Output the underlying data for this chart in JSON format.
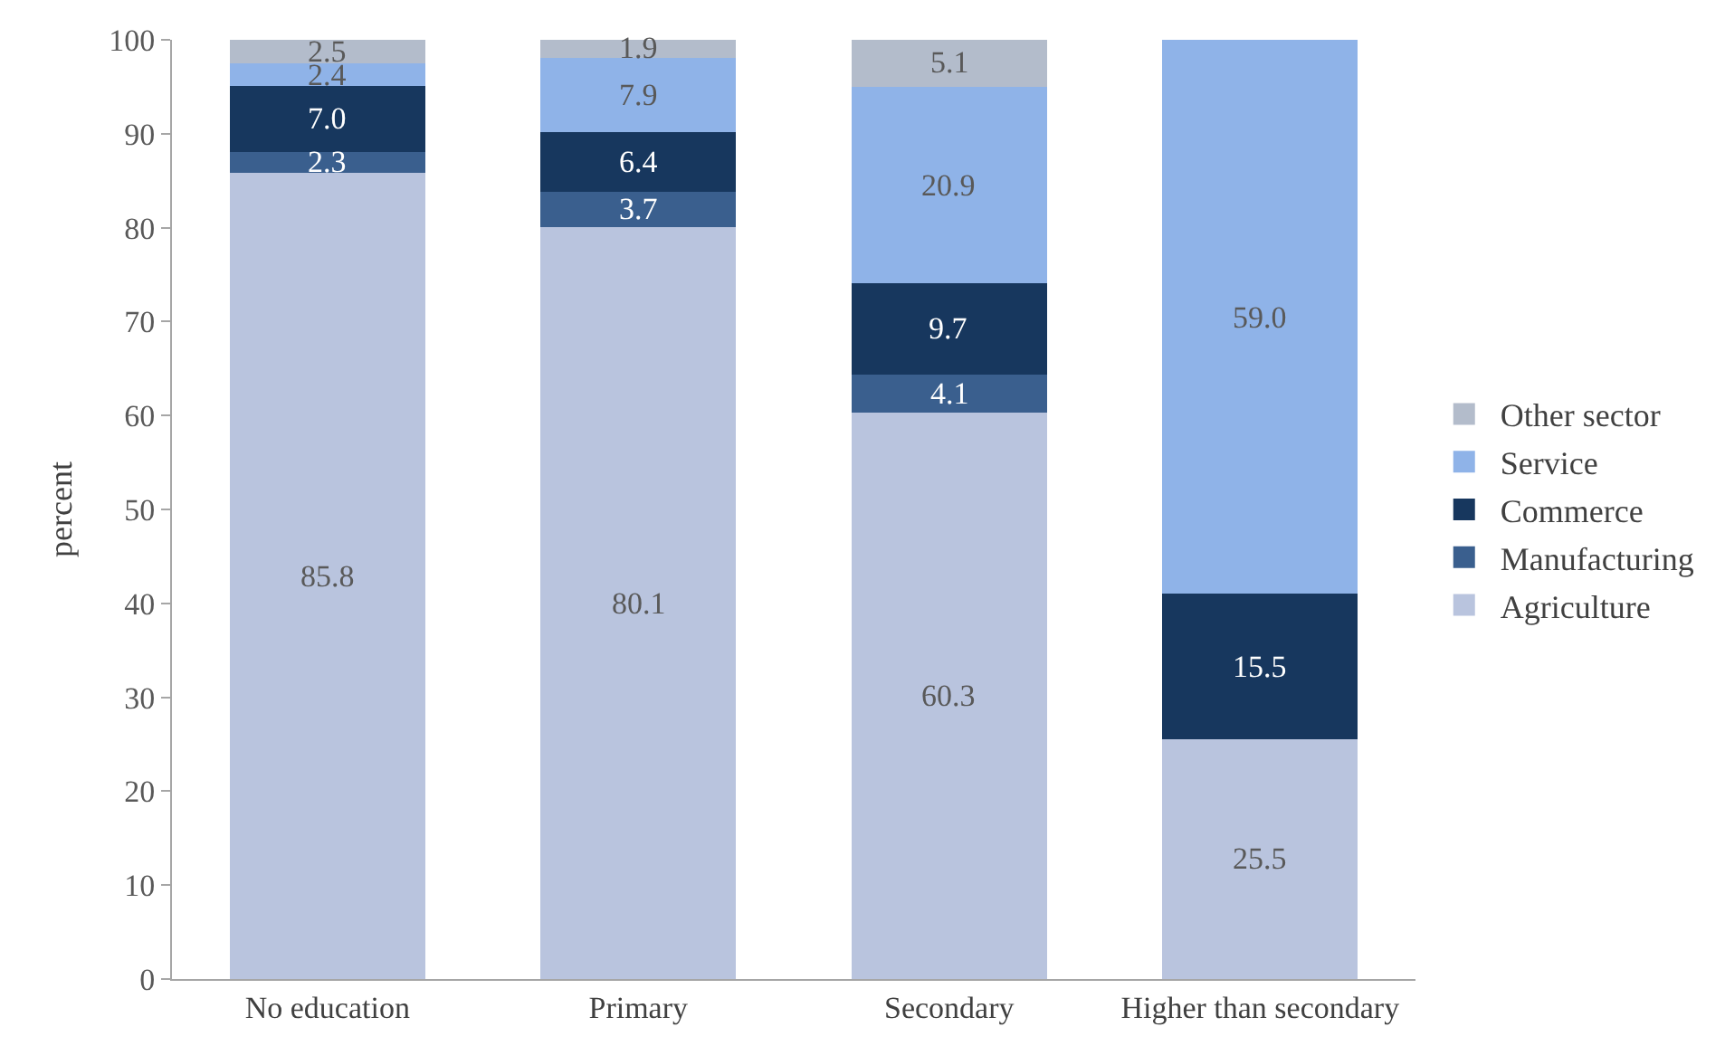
{
  "chart_data": {
    "type": "bar",
    "stacked": true,
    "ylabel": "percent",
    "categories": [
      "No education",
      "Primary",
      "Secondary",
      "Higher than secondary"
    ],
    "series": [
      {
        "name": "Agriculture",
        "color": "#b9c4de",
        "values": [
          85.8,
          80.1,
          60.3,
          25.5
        ],
        "value_labels": [
          "85.8",
          "80.1",
          "60.3",
          "25.5"
        ]
      },
      {
        "name": "Manufacturing",
        "color": "#3a5f8e",
        "values": [
          2.3,
          3.7,
          4.1,
          null
        ],
        "value_labels": [
          "2.3",
          "3.7",
          "4.1",
          null
        ]
      },
      {
        "name": "Commerce",
        "color": "#17375e",
        "values": [
          7.0,
          6.4,
          9.7,
          15.5
        ],
        "value_labels": [
          "7.0",
          "6.4",
          "9.7",
          "15.5"
        ]
      },
      {
        "name": "Service",
        "color": "#8fb3e8",
        "values": [
          2.4,
          7.9,
          20.9,
          59.0
        ],
        "value_labels": [
          "2.4",
          "7.9",
          "20.9",
          "59.0"
        ]
      },
      {
        "name": "Other sector",
        "color": "#b3bccb",
        "values": [
          2.5,
          1.9,
          5.1,
          null
        ],
        "value_labels": [
          "2.5",
          "1.9",
          "5.1",
          null
        ]
      }
    ],
    "ylim": [
      0,
      100
    ],
    "yticks": [
      0,
      10,
      20,
      30,
      40,
      50,
      60,
      70,
      80,
      90,
      100
    ],
    "legend": "right"
  }
}
